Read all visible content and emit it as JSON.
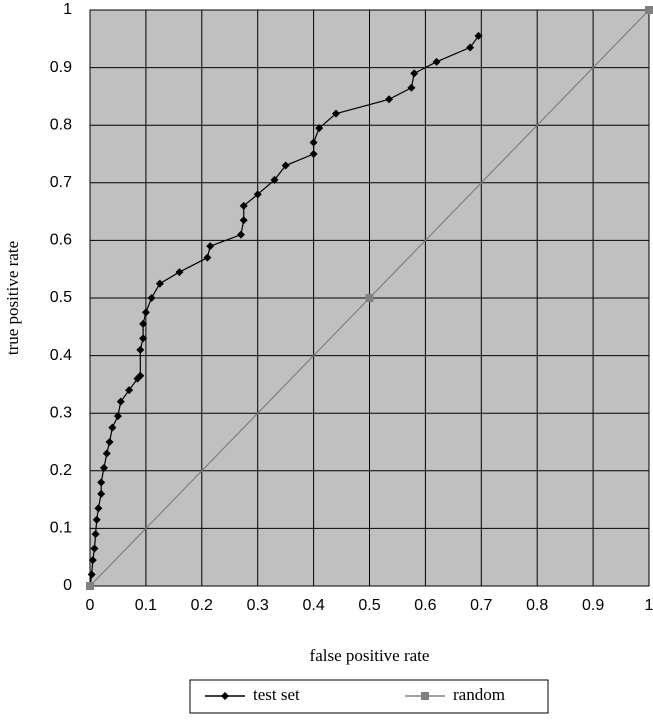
{
  "chart_data": {
    "type": "line",
    "x_label": "false positive rate",
    "y_label": "true positive rate",
    "xlim": [
      0,
      1
    ],
    "ylim": [
      0,
      1
    ],
    "xticks": [
      0,
      0.1,
      0.2,
      0.3,
      0.4,
      0.5,
      0.6,
      0.7,
      0.8,
      0.9,
      1
    ],
    "yticks": [
      0,
      0.1,
      0.2,
      0.3,
      0.4,
      0.5,
      0.6,
      0.7,
      0.8,
      0.9,
      1
    ],
    "grid": true,
    "legend": "bottom",
    "series": [
      {
        "name": "test set",
        "color": "#000000",
        "marker": "diamond",
        "x": [
          0,
          0.003,
          0.005,
          0.008,
          0.01,
          0.012,
          0.015,
          0.02,
          0.02,
          0.025,
          0.03,
          0.035,
          0.04,
          0.05,
          0.055,
          0.07,
          0.085,
          0.09,
          0.09,
          0.095,
          0.095,
          0.1,
          0.11,
          0.125,
          0.16,
          0.21,
          0.215,
          0.27,
          0.275,
          0.275,
          0.3,
          0.33,
          0.35,
          0.4,
          0.4,
          0.41,
          0.44,
          0.535,
          0.575,
          0.58,
          0.62,
          0.68,
          0.695
        ],
        "values": [
          0,
          0.02,
          0.045,
          0.065,
          0.09,
          0.115,
          0.135,
          0.16,
          0.18,
          0.205,
          0.23,
          0.25,
          0.275,
          0.295,
          0.32,
          0.34,
          0.36,
          0.365,
          0.41,
          0.43,
          0.455,
          0.475,
          0.5,
          0.525,
          0.545,
          0.57,
          0.59,
          0.61,
          0.635,
          0.66,
          0.68,
          0.705,
          0.73,
          0.75,
          0.77,
          0.795,
          0.82,
          0.845,
          0.865,
          0.89,
          0.91,
          0.935,
          0.955
        ]
      },
      {
        "name": "random",
        "color": "#808080",
        "marker": "square",
        "x": [
          0,
          0.5,
          1
        ],
        "values": [
          0,
          0.5,
          1
        ]
      }
    ]
  }
}
